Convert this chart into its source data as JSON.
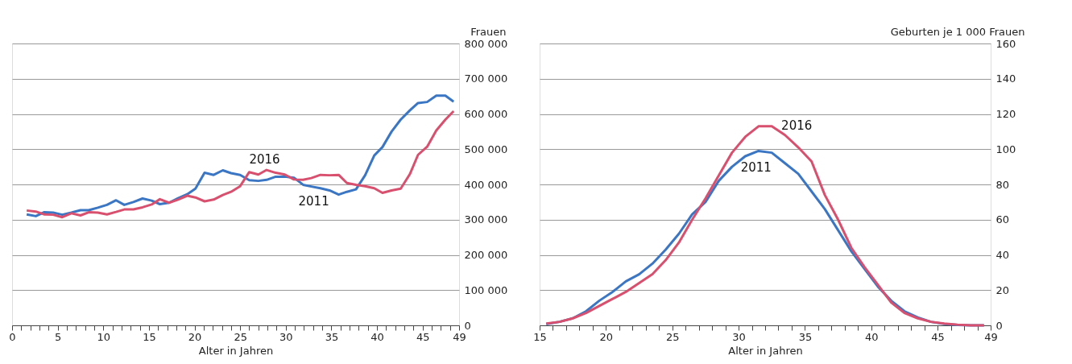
{
  "chart_data": [
    {
      "type": "line",
      "ylabel": "Frauen",
      "xlabel": "Alter in Jahren",
      "x": [
        1.6,
        2.6,
        3.5,
        4.5,
        5.5,
        6.5,
        7.5,
        8.4,
        9.4,
        10.4,
        11.4,
        12.3,
        13.3,
        14.3,
        15.3,
        16.2,
        17.2,
        18.2,
        19.2,
        20.1,
        21.1,
        22.1,
        23.1,
        24.0,
        25.0,
        26.0,
        27.0,
        27.9,
        28.9,
        29.9,
        30.9,
        31.9,
        32.8,
        33.8,
        34.8,
        35.8,
        36.7,
        37.7,
        38.7,
        39.7,
        40.6,
        41.6,
        42.6,
        43.6,
        44.5,
        45.5,
        46.5,
        47.5,
        48.4
      ],
      "series": [
        {
          "color": "#3a76c4",
          "values": [
            315000,
            310000,
            321000,
            320000,
            314000,
            320000,
            327000,
            327000,
            334000,
            342000,
            355000,
            342000,
            350000,
            360000,
            354000,
            344000,
            348000,
            361000,
            372000,
            388000,
            433000,
            427000,
            440000,
            432000,
            427000,
            412000,
            410000,
            413000,
            422000,
            422000,
            419000,
            399000,
            394000,
            389000,
            383000,
            371000,
            379000,
            386000,
            426000,
            482000,
            506000,
            550000,
            584000,
            610000,
            631000,
            634000,
            652000,
            652000,
            635000
          ]
        },
        {
          "color": "#d9506f",
          "values": [
            326000,
            323000,
            315000,
            314000,
            307000,
            318000,
            312000,
            321000,
            320000,
            315000,
            322000,
            329000,
            329000,
            335000,
            343000,
            358000,
            348000,
            357000,
            368000,
            363000,
            352000,
            357000,
            370000,
            379000,
            395000,
            435000,
            428000,
            441000,
            433000,
            428000,
            414000,
            413000,
            418000,
            427000,
            426000,
            427000,
            404000,
            399000,
            395000,
            389000,
            376000,
            383000,
            388000,
            429000,
            484000,
            507000,
            553000,
            584000,
            608000
          ]
        }
      ],
      "xlim": [
        0,
        49
      ],
      "xticks": [
        0,
        {
          "value": 1,
          "label": null
        },
        {
          "value": 2,
          "label": null
        },
        {
          "value": 3,
          "label": null
        },
        {
          "value": 4,
          "label": null
        },
        5,
        {
          "value": 6,
          "label": null
        },
        {
          "value": 7,
          "label": null
        },
        {
          "value": 8,
          "label": null
        },
        {
          "value": 9,
          "label": null
        },
        10,
        {
          "value": 11,
          "label": null
        },
        {
          "value": 12,
          "label": null
        },
        {
          "value": 13,
          "label": null
        },
        {
          "value": 14,
          "label": null
        },
        15,
        {
          "value": 16,
          "label": null
        },
        {
          "value": 17,
          "label": null
        },
        {
          "value": 18,
          "label": null
        },
        {
          "value": 19,
          "label": null
        },
        20,
        {
          "value": 21,
          "label": null
        },
        {
          "value": 22,
          "label": null
        },
        {
          "value": 23,
          "label": null
        },
        {
          "value": 24,
          "label": null
        },
        25,
        {
          "value": 26,
          "label": null
        },
        {
          "value": 27,
          "label": null
        },
        {
          "value": 28,
          "label": null
        },
        {
          "value": 29,
          "label": null
        },
        30,
        {
          "value": 31,
          "label": null
        },
        {
          "value": 32,
          "label": null
        },
        {
          "value": 33,
          "label": null
        },
        {
          "value": 34,
          "label": null
        },
        35,
        {
          "value": 36,
          "label": null
        },
        {
          "value": 37,
          "label": null
        },
        {
          "value": 38,
          "label": null
        },
        {
          "value": 39,
          "label": null
        },
        40,
        {
          "value": 41,
          "label": null
        },
        {
          "value": 42,
          "label": null
        },
        {
          "value": 43,
          "label": null
        },
        {
          "value": 44,
          "label": null
        },
        45,
        {
          "value": 46,
          "label": null
        },
        {
          "value": 47,
          "label": null
        },
        {
          "value": 48,
          "label": null
        },
        49
      ],
      "ylim": [
        0,
        800000
      ],
      "yticks": [
        0,
        {
          "value": 100000,
          "label": "100 000"
        },
        {
          "value": 200000,
          "label": "200 000"
        },
        {
          "value": 300000,
          "label": "300 000"
        },
        {
          "value": 400000,
          "label": "400 000"
        },
        {
          "value": 500000,
          "label": "500 000"
        },
        {
          "value": 600000,
          "label": "600 000"
        },
        {
          "value": 700000,
          "label": "700 000"
        },
        {
          "value": 800000,
          "label": "800 000"
        }
      ],
      "grid": "y",
      "marker": "none",
      "line_style": "solid",
      "annotations": [
        "2016",
        "2011"
      ]
    },
    {
      "type": "line",
      "ylabel": "Geburten je 1 000 Frauen",
      "xlabel": "Alter in Jahren",
      "x": [
        15.5,
        16.5,
        17.5,
        18.5,
        19.5,
        20.5,
        21.5,
        22.5,
        23.5,
        24.5,
        25.5,
        26.5,
        27.5,
        28.5,
        29.5,
        30.5,
        31.5,
        32.5,
        33.5,
        34.5,
        35.5,
        36.5,
        37.5,
        38.5,
        39.5,
        40.5,
        41.5,
        42.5,
        43.5,
        44.5,
        45.5,
        46.5,
        47.5,
        48.5
      ],
      "series": [
        {
          "color": "#3a76c4",
          "values": [
            0.7,
            2,
            4,
            8,
            14,
            19,
            25,
            29,
            35,
            43,
            52,
            63,
            70,
            82,
            90,
            96,
            99,
            98,
            92,
            86,
            76,
            66,
            54,
            42,
            32,
            22,
            14,
            8,
            4.5,
            2,
            0.8,
            0.2,
            0,
            0
          ]
        },
        {
          "color": "#d9506f",
          "values": [
            1,
            2,
            4,
            7,
            11,
            15,
            19,
            24,
            29,
            37,
            47,
            60,
            72,
            85,
            98,
            107,
            113,
            113,
            108,
            101,
            93,
            74,
            60,
            44,
            33,
            23,
            13,
            7,
            4,
            2,
            1,
            0.4,
            0,
            0
          ]
        }
      ],
      "xlim": [
        15,
        49
      ],
      "xticks": [
        15,
        {
          "value": 16,
          "label": null
        },
        {
          "value": 17,
          "label": null
        },
        {
          "value": 18,
          "label": null
        },
        {
          "value": 19,
          "label": null
        },
        20,
        {
          "value": 21,
          "label": null
        },
        {
          "value": 22,
          "label": null
        },
        {
          "value": 23,
          "label": null
        },
        {
          "value": 24,
          "label": null
        },
        25,
        {
          "value": 26,
          "label": null
        },
        {
          "value": 27,
          "label": null
        },
        {
          "value": 28,
          "label": null
        },
        {
          "value": 29,
          "label": null
        },
        30,
        {
          "value": 31,
          "label": null
        },
        {
          "value": 32,
          "label": null
        },
        {
          "value": 33,
          "label": null
        },
        {
          "value": 34,
          "label": null
        },
        35,
        {
          "value": 36,
          "label": null
        },
        {
          "value": 37,
          "label": null
        },
        {
          "value": 38,
          "label": null
        },
        {
          "value": 39,
          "label": null
        },
        40,
        {
          "value": 41,
          "label": null
        },
        {
          "value": 42,
          "label": null
        },
        {
          "value": 43,
          "label": null
        },
        {
          "value": 44,
          "label": null
        },
        45,
        {
          "value": 46,
          "label": null
        },
        {
          "value": 47,
          "label": null
        },
        {
          "value": 48,
          "label": null
        },
        49
      ],
      "ylim": [
        0,
        160
      ],
      "yticks": [
        0,
        20,
        40,
        60,
        80,
        100,
        120,
        140,
        160
      ],
      "grid": "y",
      "marker": "none",
      "line_style": "solid",
      "annotations": [
        "2016",
        "2011"
      ]
    }
  ]
}
